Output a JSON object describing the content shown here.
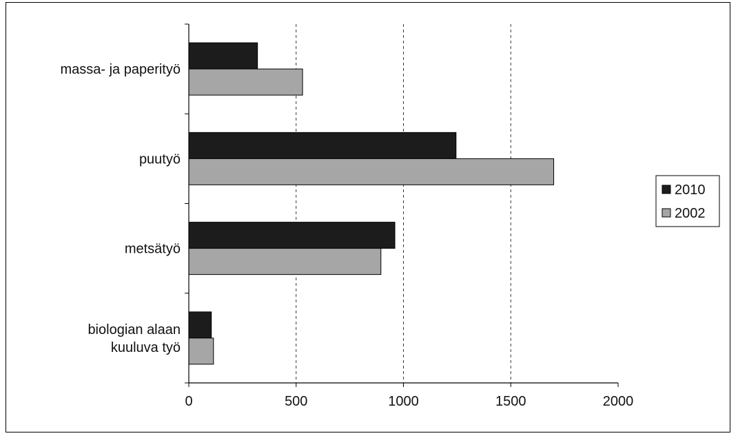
{
  "chart_data": {
    "type": "bar",
    "orientation": "horizontal",
    "categories": [
      [
        "massa- ja paperityö"
      ],
      [
        "puutyö"
      ],
      [
        "metsätyö"
      ],
      [
        "biologian alaan",
        "kuuluva työ"
      ]
    ],
    "series": [
      {
        "name": "2010",
        "values": [
          320,
          1245,
          960,
          105
        ],
        "color": "#1c1c1c"
      },
      {
        "name": "2002",
        "values": [
          530,
          1700,
          895,
          115
        ],
        "color": "#a6a6a6"
      }
    ],
    "xlim": [
      0,
      2000
    ],
    "xticks": [
      "0",
      "500",
      "1000",
      "1500",
      "2000"
    ],
    "grid": {
      "vertical": true,
      "style": "dashed"
    },
    "legend": "right",
    "title": "",
    "xlabel": "",
    "ylabel": ""
  }
}
